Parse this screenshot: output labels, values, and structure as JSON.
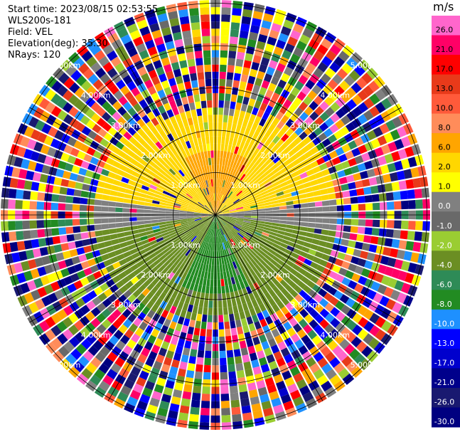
{
  "header": {
    "start_time": "Start time: 2023/08/15 02:53:55",
    "site": "WLS200s-181",
    "field": "Field: VEL",
    "elevation": "Elevation(deg): 35.30",
    "nrays": "NRays: 120"
  },
  "ppi": {
    "range_ring_labels": [
      "1.00km",
      "2.00km",
      "3.00km",
      "4.00km",
      "5.00km"
    ],
    "max_range_km": 5.0,
    "rays": 120,
    "gates": 30
  },
  "colorbar": {
    "unit": "m/s",
    "ticks": [
      "26.0",
      "21.0",
      "17.0",
      "13.0",
      "10.0",
      "8.0",
      "6.0",
      "2.0",
      "1.0",
      "0.0",
      "-1.0",
      "-2.0",
      "-4.0",
      "-6.0",
      "-8.0",
      "-10.0",
      "-13.0",
      "-17.0",
      "-21.0",
      "-26.0",
      "-30.0"
    ],
    "colors": [
      "#ff66cc",
      "#ff0066",
      "#ff0000",
      "#e83a1a",
      "#ff5a3a",
      "#ff8c5a",
      "#ffa500",
      "#ffd700",
      "#ffff00",
      "#808080",
      "#696969",
      "#9acd32",
      "#6b8e23",
      "#2e8b57",
      "#228b22",
      "#1e90ff",
      "#0000ff",
      "#0000cd",
      "#00008b",
      "#191970",
      "#000080"
    ]
  }
}
